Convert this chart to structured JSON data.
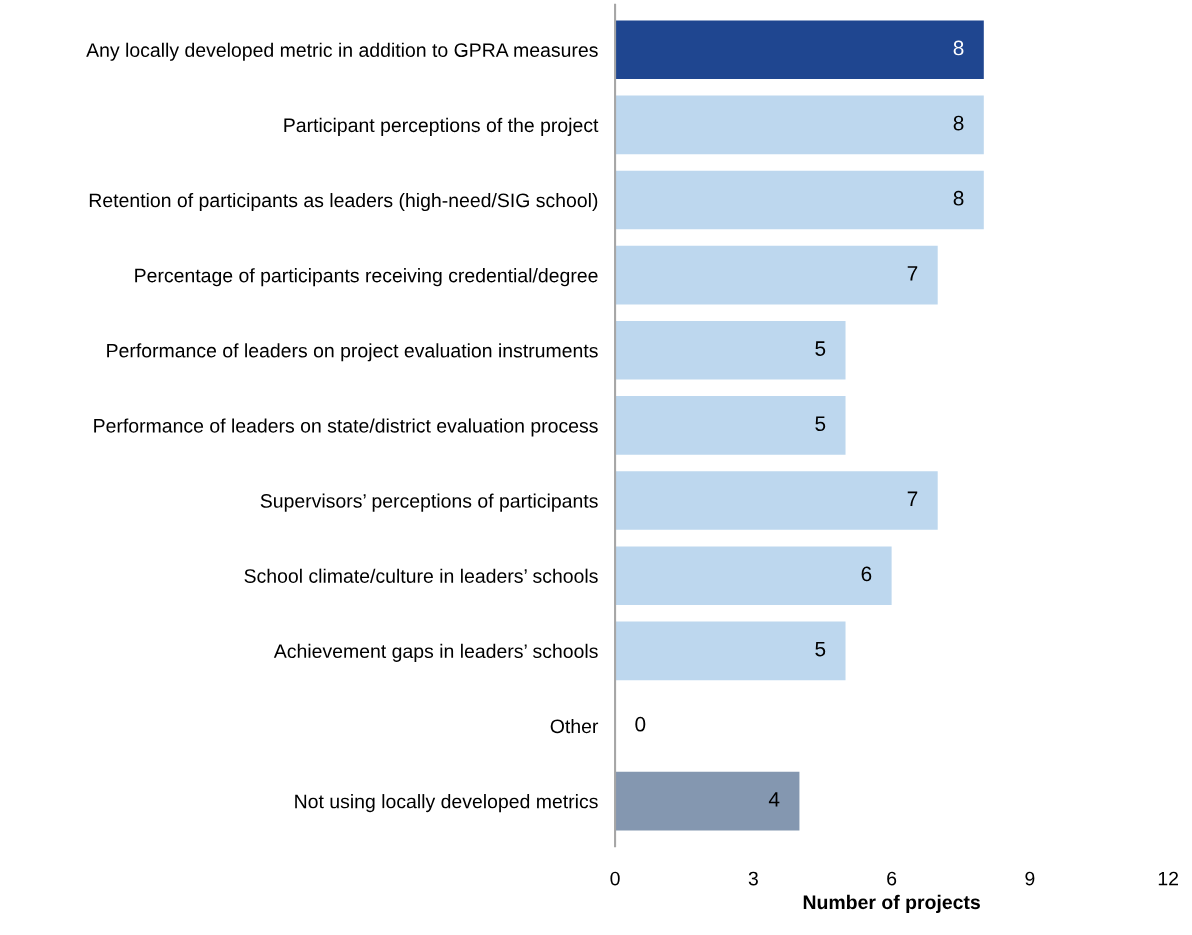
{
  "chart_data": {
    "type": "bar",
    "orientation": "horizontal",
    "xlabel": "Number of projects",
    "categories": [
      "Any locally developed metric in addition to GPRA measures",
      "Participant perceptions of the project",
      "Retention of participants as leaders (high-need/SIG school)",
      "Percentage of participants receiving credential/degree",
      "Performance of leaders on project evaluation instruments",
      "Performance of leaders on state/district evaluation process",
      "Supervisors’ perceptions of participants",
      "School climate/culture in leaders’ schools",
      "Achievement gaps in leaders’ schools",
      "Other",
      "Not using locally developed metrics"
    ],
    "values": [
      8,
      8,
      8,
      7,
      5,
      5,
      7,
      6,
      5,
      0,
      4
    ],
    "colors": [
      "#1f4690",
      "#bdd7ee",
      "#bdd7ee",
      "#bdd7ee",
      "#bdd7ee",
      "#bdd7ee",
      "#bdd7ee",
      "#bdd7ee",
      "#bdd7ee",
      "#bdd7ee",
      "#8497b0"
    ],
    "xlim": [
      0,
      12
    ],
    "xticks": [
      0,
      3,
      6,
      9,
      12
    ],
    "data_labels": true,
    "grid": false,
    "legend": false
  }
}
